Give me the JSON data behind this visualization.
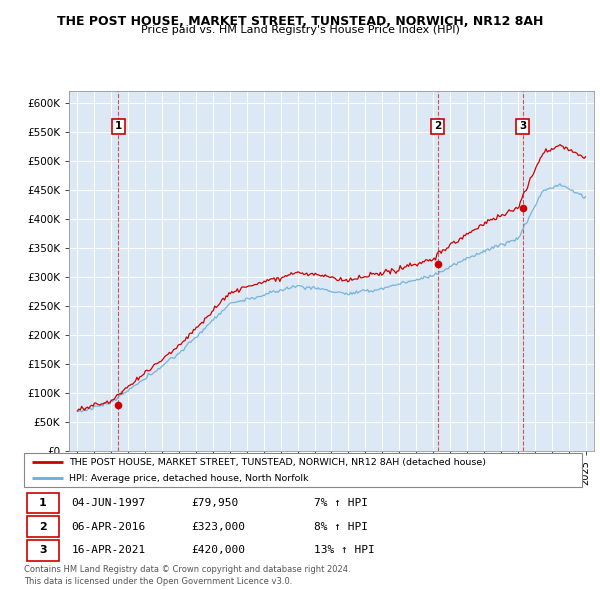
{
  "title": "THE POST HOUSE, MARKET STREET, TUNSTEAD, NORWICH, NR12 8AH",
  "subtitle": "Price paid vs. HM Land Registry's House Price Index (HPI)",
  "ylabel_vals": [
    0,
    50000,
    100000,
    150000,
    200000,
    250000,
    300000,
    350000,
    400000,
    450000,
    500000,
    550000,
    600000
  ],
  "ylabel_labels": [
    "£0",
    "£50K",
    "£100K",
    "£150K",
    "£200K",
    "£250K",
    "£300K",
    "£350K",
    "£400K",
    "£450K",
    "£500K",
    "£550K",
    "£600K"
  ],
  "ylim": [
    0,
    620000
  ],
  "hpi_color": "#6baed6",
  "price_color": "#cc0000",
  "sale_dates": [
    1997.42,
    2016.26,
    2021.29
  ],
  "sale_prices": [
    79950,
    323000,
    420000
  ],
  "sale_labels": [
    "1",
    "2",
    "3"
  ],
  "legend_line1": "THE POST HOUSE, MARKET STREET, TUNSTEAD, NORWICH, NR12 8AH (detached house)",
  "legend_line2": "HPI: Average price, detached house, North Norfolk",
  "table_rows": [
    [
      "1",
      "04-JUN-1997",
      "£79,950",
      "7% ↑ HPI"
    ],
    [
      "2",
      "06-APR-2016",
      "£323,000",
      "8% ↑ HPI"
    ],
    [
      "3",
      "16-APR-2021",
      "£420,000",
      "13% ↑ HPI"
    ]
  ],
  "footnote": "Contains HM Land Registry data © Crown copyright and database right 2024.\nThis data is licensed under the Open Government Licence v3.0.",
  "background_color": "#dce9f5"
}
